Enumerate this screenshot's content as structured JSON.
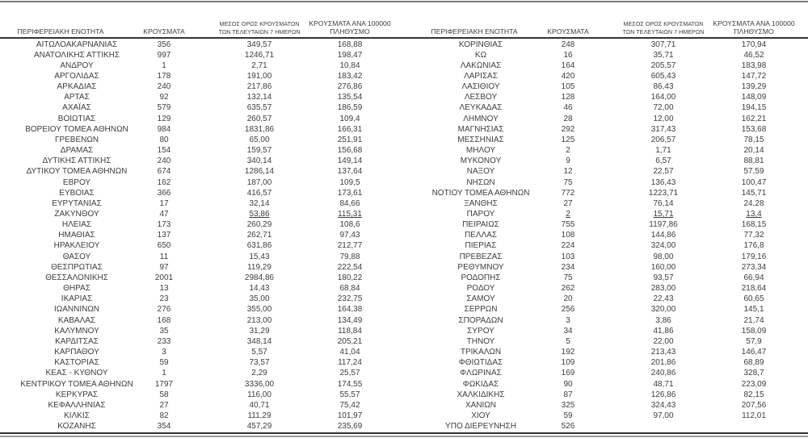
{
  "table": {
    "columns": {
      "region": "ΠΕΡΙΦΕΡΕΙΑΚΗ ΕΝΟΤΗΤΑ",
      "cases": "ΚΡΟΥΣΜΑΤΑ",
      "avg7_line1": "ΜΕΣΟΣ ΟΡΟΣ ΚΡΟΥΣΜΑΤΩΝ",
      "avg7_line2": "ΤΩΝ ΤΕΛΕΥΤΑΙΩΝ 7 ΗΜΕΡΩΝ",
      "per100k_line1": "ΚΡΟΥΣΜΑΤΑ ΑΝΑ 100000",
      "per100k_line2": "ΠΛΗΘΥΣΜΟ"
    },
    "left_rows": [
      {
        "region": "ΑΙΤΩΛΟΑΚΑΡΝΑΝΙΑΣ",
        "cases": "356",
        "avg7": "349,57",
        "per100k": "168,88"
      },
      {
        "region": "ΑΝΑΤΟΛΙΚΗΣ ΑΤΤΙΚΗΣ",
        "cases": "997",
        "avg7": "1246,71",
        "per100k": "198,47"
      },
      {
        "region": "ΑΝΔΡΟΥ",
        "cases": "1",
        "avg7": "2,71",
        "per100k": "10,84"
      },
      {
        "region": "ΑΡΓΟΛΙΔΑΣ",
        "cases": "178",
        "avg7": "191,00",
        "per100k": "183,42"
      },
      {
        "region": "ΑΡΚΑΔΙΑΣ",
        "cases": "240",
        "avg7": "217,86",
        "per100k": "276,86"
      },
      {
        "region": "ΑΡΤΑΣ",
        "cases": "92",
        "avg7": "132,14",
        "per100k": "135,54"
      },
      {
        "region": "ΑΧΑΪΑΣ",
        "cases": "579",
        "avg7": "635,57",
        "per100k": "186,59"
      },
      {
        "region": "ΒΟΙΩΤΙΑΣ",
        "cases": "129",
        "avg7": "260,57",
        "per100k": "109,4"
      },
      {
        "region": "ΒΟΡΕΙΟΥ ΤΟΜΕΑ ΑΘΗΝΩΝ",
        "cases": "984",
        "avg7": "1831,86",
        "per100k": "166,31"
      },
      {
        "region": "ΓΡΕΒΕΝΩΝ",
        "cases": "80",
        "avg7": "65,00",
        "per100k": "251,91"
      },
      {
        "region": "ΔΡΑΜΑΣ",
        "cases": "154",
        "avg7": "159,57",
        "per100k": "156,68"
      },
      {
        "region": "ΔΥΤΙΚΗΣ ΑΤΤΙΚΗΣ",
        "cases": "240",
        "avg7": "340,14",
        "per100k": "149,14"
      },
      {
        "region": "ΔΥΤΙΚΟΥ ΤΟΜΕΑ ΑΘΗΝΩΝ",
        "cases": "674",
        "avg7": "1286,14",
        "per100k": "137,64"
      },
      {
        "region": "ΕΒΡΟΥ",
        "cases": "162",
        "avg7": "187,00",
        "per100k": "109,5"
      },
      {
        "region": "ΕΥΒΟΙΑΣ",
        "cases": "366",
        "avg7": "416,57",
        "per100k": "173,61"
      },
      {
        "region": "ΕΥΡΥΤΑΝΙΑΣ",
        "cases": "17",
        "avg7": "32,14",
        "per100k": "84,66"
      },
      {
        "region": "ΖΑΚΥΝΘΟΥ",
        "cases": "47",
        "avg7": "53,86",
        "per100k": "115,31",
        "underline": [
          "avg7",
          "per100k"
        ]
      },
      {
        "region": "ΗΛΕΙΑΣ",
        "cases": "173",
        "avg7": "260,29",
        "per100k": "108,6"
      },
      {
        "region": "ΗΜΑΘΙΑΣ",
        "cases": "137",
        "avg7": "262,71",
        "per100k": "97,43"
      },
      {
        "region": "ΗΡΑΚΛΕΙΟΥ",
        "cases": "650",
        "avg7": "631,86",
        "per100k": "212,77"
      },
      {
        "region": "ΘΑΣΟΥ",
        "cases": "11",
        "avg7": "15,43",
        "per100k": "79,88"
      },
      {
        "region": "ΘΕΣΠΡΩΤΙΑΣ",
        "cases": "97",
        "avg7": "119,29",
        "per100k": "222,54"
      },
      {
        "region": "ΘΕΣΣΑΛΟΝΙΚΗΣ",
        "cases": "2001",
        "avg7": "2984,86",
        "per100k": "180,22"
      },
      {
        "region": "ΘΗΡΑΣ",
        "cases": "13",
        "avg7": "14,43",
        "per100k": "68,84"
      },
      {
        "region": "ΙΚΑΡΙΑΣ",
        "cases": "23",
        "avg7": "35,00",
        "per100k": "232,75"
      },
      {
        "region": "ΙΩΑΝΝΙΝΩΝ",
        "cases": "276",
        "avg7": "355,00",
        "per100k": "164,38"
      },
      {
        "region": "ΚΑΒΑΛΑΣ",
        "cases": "168",
        "avg7": "213,00",
        "per100k": "134,49"
      },
      {
        "region": "ΚΑΛΥΜΝΟΥ",
        "cases": "35",
        "avg7": "31,29",
        "per100k": "118,84"
      },
      {
        "region": "ΚΑΡΔΙΤΣΑΣ",
        "cases": "233",
        "avg7": "348,14",
        "per100k": "205,21"
      },
      {
        "region": "ΚΑΡΠΑΘΟΥ",
        "cases": "3",
        "avg7": "5,57",
        "per100k": "41,04"
      },
      {
        "region": "ΚΑΣΤΟΡΙΑΣ",
        "cases": "59",
        "avg7": "73,57",
        "per100k": "117,24"
      },
      {
        "region": "ΚΕΑΣ - ΚΥΘΝΟΥ",
        "cases": "1",
        "avg7": "2,29",
        "per100k": "25,57"
      },
      {
        "region": "ΚΕΝΤΡΙΚΟΥ ΤΟΜΕΑ ΑΘΗΝΩΝ",
        "cases": "1797",
        "avg7": "3336,00",
        "per100k": "174,55"
      },
      {
        "region": "ΚΕΡΚΥΡΑΣ",
        "cases": "58",
        "avg7": "116,00",
        "per100k": "55,57"
      },
      {
        "region": "ΚΕΦΑΛΛΗΝΙΑΣ",
        "cases": "27",
        "avg7": "40,71",
        "per100k": "75,42"
      },
      {
        "region": "ΚΙΛΚΙΣ",
        "cases": "82",
        "avg7": "111,29",
        "per100k": "101,97"
      },
      {
        "region": "ΚΟΖΑΝΗΣ",
        "cases": "354",
        "avg7": "457,29",
        "per100k": "235,69"
      }
    ],
    "right_rows": [
      {
        "region": "ΚΟΡΙΝΘΙΑΣ",
        "cases": "248",
        "avg7": "307,71",
        "per100k": "170,94"
      },
      {
        "region": "ΚΩ",
        "cases": "16",
        "avg7": "35,71",
        "per100k": "46,52"
      },
      {
        "region": "ΛΑΚΩΝΙΑΣ",
        "cases": "164",
        "avg7": "205,57",
        "per100k": "183,98"
      },
      {
        "region": "ΛΑΡΙΣΑΣ",
        "cases": "420",
        "avg7": "605,43",
        "per100k": "147,72"
      },
      {
        "region": "ΛΑΣΙΘΙΟΥ",
        "cases": "105",
        "avg7": "86,43",
        "per100k": "139,29"
      },
      {
        "region": "ΛΕΣΒΟΥ",
        "cases": "128",
        "avg7": "164,00",
        "per100k": "148,09"
      },
      {
        "region": "ΛΕΥΚΑΔΑΣ",
        "cases": "46",
        "avg7": "72,00",
        "per100k": "194,15"
      },
      {
        "region": "ΛΗΜΝΟΥ",
        "cases": "28",
        "avg7": "12,00",
        "per100k": "162,21"
      },
      {
        "region": "ΜΑΓΝΗΣΙΑΣ",
        "cases": "292",
        "avg7": "317,43",
        "per100k": "153,68"
      },
      {
        "region": "ΜΕΣΣΗΝΙΑΣ",
        "cases": "125",
        "avg7": "206,57",
        "per100k": "78,15"
      },
      {
        "region": "ΜΗΛΟΥ",
        "cases": "2",
        "avg7": "1,71",
        "per100k": "20,14"
      },
      {
        "region": "ΜΥΚΟΝΟΥ",
        "cases": "9",
        "avg7": "6,57",
        "per100k": "88,81"
      },
      {
        "region": "ΝΑΞΟΥ",
        "cases": "12",
        "avg7": "22,57",
        "per100k": "57,59"
      },
      {
        "region": "ΝΗΣΩΝ",
        "cases": "75",
        "avg7": "136,43",
        "per100k": "100,47"
      },
      {
        "region": "ΝΟΤΙΟΥ ΤΟΜΕΑ ΑΘΗΝΩΝ",
        "cases": "772",
        "avg7": "1223,71",
        "per100k": "145,71"
      },
      {
        "region": "ΞΑΝΘΗΣ",
        "cases": "27",
        "avg7": "76,14",
        "per100k": "24,28"
      },
      {
        "region": "ΠΑΡΟΥ",
        "cases": "2",
        "avg7": "15,71",
        "per100k": "13,4",
        "underline": [
          "cases",
          "avg7",
          "per100k"
        ]
      },
      {
        "region": "ΠΕΙΡΑΙΩΣ",
        "cases": "755",
        "avg7": "1197,86",
        "per100k": "168,15"
      },
      {
        "region": "ΠΕΛΛΑΣ",
        "cases": "108",
        "avg7": "144,86",
        "per100k": "77,32"
      },
      {
        "region": "ΠΙΕΡΙΑΣ",
        "cases": "224",
        "avg7": "324,00",
        "per100k": "176,8"
      },
      {
        "region": "ΠΡΕΒΕΖΑΣ",
        "cases": "103",
        "avg7": "98,00",
        "per100k": "179,16"
      },
      {
        "region": "ΡΕΘΥΜΝΟΥ",
        "cases": "234",
        "avg7": "160,00",
        "per100k": "273,34"
      },
      {
        "region": "ΡΟΔΟΠΗΣ",
        "cases": "75",
        "avg7": "93,57",
        "per100k": "66,94"
      },
      {
        "region": "ΡΟΔΟΥ",
        "cases": "262",
        "avg7": "283,00",
        "per100k": "218,64"
      },
      {
        "region": "ΣΑΜΟΥ",
        "cases": "20",
        "avg7": "22,43",
        "per100k": "60,65"
      },
      {
        "region": "ΣΕΡΡΩΝ",
        "cases": "256",
        "avg7": "320,00",
        "per100k": "145,1"
      },
      {
        "region": "ΣΠΟΡΑΔΩΝ",
        "cases": "3",
        "avg7": "3,86",
        "per100k": "21,74"
      },
      {
        "region": "ΣΥΡΟΥ",
        "cases": "34",
        "avg7": "41,86",
        "per100k": "158,09"
      },
      {
        "region": "ΤΗΝΟΥ",
        "cases": "5",
        "avg7": "22,00",
        "per100k": "57,9"
      },
      {
        "region": "ΤΡΙΚΑΛΩΝ",
        "cases": "192",
        "avg7": "213,43",
        "per100k": "146,47"
      },
      {
        "region": "ΦΘΙΩΤΙΔΑΣ",
        "cases": "109",
        "avg7": "201,86",
        "per100k": "68,89"
      },
      {
        "region": "ΦΛΩΡΙΝΑΣ",
        "cases": "169",
        "avg7": "240,86",
        "per100k": "328,7"
      },
      {
        "region": "ΦΩΚΙΔΑΣ",
        "cases": "90",
        "avg7": "48,71",
        "per100k": "223,09"
      },
      {
        "region": "ΧΑΛΚΙΔΙΚΗΣ",
        "cases": "87",
        "avg7": "126,86",
        "per100k": "82,15"
      },
      {
        "region": "ΧΑΝΙΩΝ",
        "cases": "325",
        "avg7": "324,43",
        "per100k": "207,56"
      },
      {
        "region": "ΧΙΟΥ",
        "cases": "59",
        "avg7": "97,00",
        "per100k": "112,01"
      },
      {
        "region": "ΥΠΟ ΔΙΕΡΕΥΝΗΣΗ",
        "cases": "526",
        "avg7": "",
        "per100k": ""
      }
    ]
  },
  "colors": {
    "background": "#ffffff",
    "text": "#3d3d3d",
    "top_rule": "#7d7d7d",
    "header_rule": "#333333",
    "bottom_rule_dark": "#333333",
    "bottom_rule_gray": "#9b9b9b"
  }
}
